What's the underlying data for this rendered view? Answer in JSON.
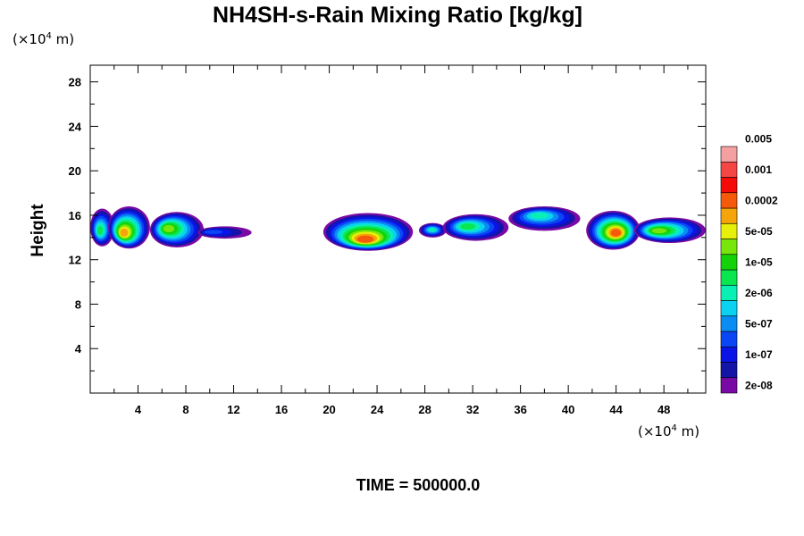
{
  "chart_data": {
    "type": "heatmap",
    "title": "NH4SH-s-Rain Mixing Ratio [kg/kg]",
    "ylabel": "Height",
    "xlabel": "",
    "x_unit": {
      "prefix": "(×10",
      "exp": "4",
      "suffix": " m)"
    },
    "y_unit": {
      "prefix": "(×10",
      "exp": "4",
      "suffix": " m)"
    },
    "xlim": [
      0,
      51.5
    ],
    "ylim": [
      0,
      29.5
    ],
    "xticks": [
      "4",
      "8",
      "12",
      "16",
      "20",
      "24",
      "28",
      "32",
      "36",
      "40",
      "44",
      "48"
    ],
    "yticks": [
      "4",
      "8",
      "12",
      "16",
      "20",
      "24",
      "28"
    ],
    "grid": false,
    "colorbar": {
      "position": "right",
      "colors": [
        "#7a0aa6",
        "#1414a6",
        "#0a14e6",
        "#0a46f5",
        "#0a8cf5",
        "#0ad2f0",
        "#0af0b4",
        "#0ae650",
        "#14d20a",
        "#78e60a",
        "#e6f00a",
        "#f5a50a",
        "#f55a0a",
        "#f50a0a",
        "#f54646",
        "#f5a0a0"
      ],
      "labels": [
        "2e-08",
        "1e-07",
        "5e-07",
        "2e-06",
        "1e-05",
        "5e-05",
        "0.0002",
        "0.001",
        "0.005"
      ]
    },
    "clouds": [
      {
        "x0": 0.0,
        "x1": 2.0,
        "y0": 13.2,
        "y1": 16.6,
        "core_x": 0.8,
        "core_y": 14.6,
        "peak": 7
      },
      {
        "x0": 1.5,
        "x1": 5.0,
        "y0": 13.0,
        "y1": 16.8,
        "core_x": 2.8,
        "core_y": 14.4,
        "peak": 11
      },
      {
        "x0": 5.0,
        "x1": 9.5,
        "y0": 13.1,
        "y1": 16.3,
        "core_x": 6.5,
        "core_y": 14.8,
        "peak": 9
      },
      {
        "x0": 9.0,
        "x1": 13.5,
        "y0": 13.9,
        "y1": 15.0,
        "core_x": 10.0,
        "core_y": 14.5,
        "peak": 3
      },
      {
        "x0": 19.5,
        "x1": 27.0,
        "y0": 12.8,
        "y1": 16.2,
        "core_x": 23.0,
        "core_y": 13.8,
        "peak": 12
      },
      {
        "x0": 27.5,
        "x1": 29.8,
        "y0": 14.0,
        "y1": 15.3,
        "core_x": 28.6,
        "core_y": 14.7,
        "peak": 6
      },
      {
        "x0": 29.5,
        "x1": 35.0,
        "y0": 13.7,
        "y1": 16.1,
        "core_x": 31.5,
        "core_y": 15.0,
        "peak": 7
      },
      {
        "x0": 35.0,
        "x1": 41.0,
        "y0": 14.6,
        "y1": 16.8,
        "core_x": 37.5,
        "core_y": 16.0,
        "peak": 6
      },
      {
        "x0": 41.5,
        "x1": 46.0,
        "y0": 12.9,
        "y1": 16.4,
        "core_x": 44.0,
        "core_y": 14.4,
        "peak": 12
      },
      {
        "x0": 45.5,
        "x1": 51.5,
        "y0": 13.5,
        "y1": 15.8,
        "core_x": 47.5,
        "core_y": 14.6,
        "peak": 9
      }
    ]
  },
  "footer": {
    "time_label": "TIME = 500000.0"
  }
}
